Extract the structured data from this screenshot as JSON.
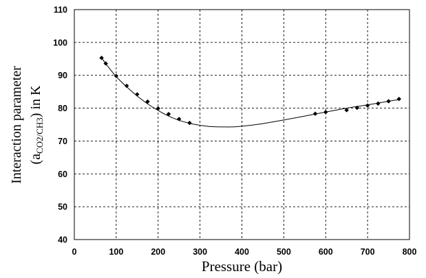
{
  "chart_data": {
    "type": "scatter",
    "xlabel": "Pressure (bar)",
    "ylabel": {
      "line1": "Interaction parameter",
      "line2_open": "(a",
      "line2_sub": "CO2/CH3",
      "line2_close": ") in K"
    },
    "xlim": [
      0,
      800
    ],
    "ylim": [
      40,
      110
    ],
    "xticks": [
      0,
      100,
      200,
      300,
      400,
      500,
      600,
      700,
      800
    ],
    "yticks": [
      40,
      50,
      60,
      70,
      80,
      90,
      100,
      110
    ],
    "grid": true,
    "series": [
      {
        "kind": "points",
        "x": [
          65,
          75,
          100,
          125,
          150,
          175,
          200,
          225,
          250,
          275,
          575,
          600,
          650,
          675,
          700,
          725,
          750,
          775
        ],
        "y": [
          95.3,
          93.6,
          89.8,
          86.8,
          84.2,
          82.0,
          79.9,
          78.2,
          76.7,
          75.5,
          78.3,
          78.8,
          79.4,
          80.1,
          80.8,
          81.4,
          82.1,
          82.8
        ]
      },
      {
        "kind": "fit-curve",
        "x": [
          65,
          80,
          100,
          125,
          150,
          175,
          200,
          225,
          250,
          275,
          300,
          325,
          350,
          375,
          400,
          450,
          500,
          550,
          600,
          650,
          700,
          750,
          775
        ],
        "y": [
          95.3,
          92.7,
          89.6,
          86.5,
          83.7,
          81.3,
          79.3,
          77.6,
          76.3,
          75.4,
          74.8,
          74.4,
          74.3,
          74.3,
          74.5,
          75.3,
          76.4,
          77.6,
          78.8,
          80.0,
          81.0,
          82.1,
          82.6
        ]
      }
    ]
  }
}
